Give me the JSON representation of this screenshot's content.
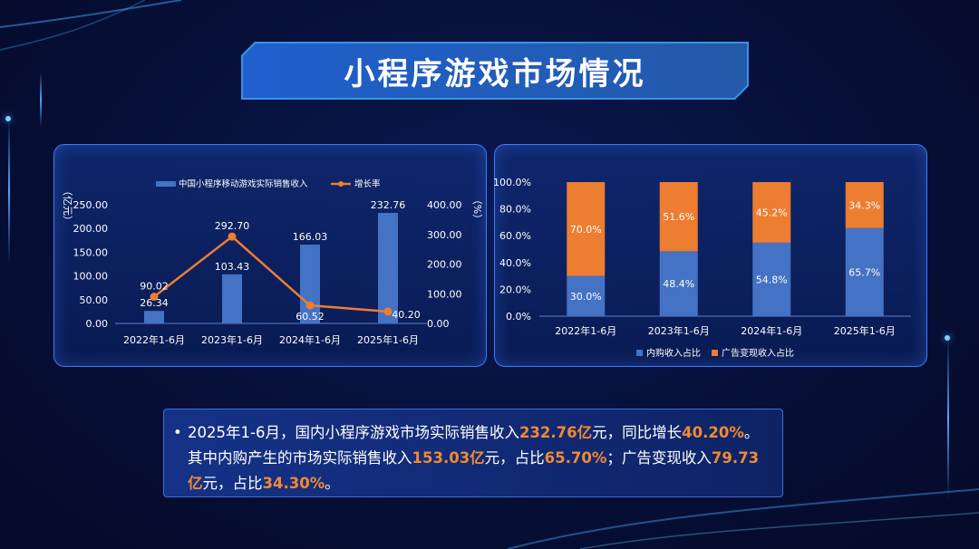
{
  "page": {
    "title": "小程序游戏市场情况"
  },
  "colors": {
    "blue": "#4472c4",
    "orange": "#ed7d31",
    "panel_border": "#3d7bff"
  },
  "chart_data": [
    {
      "type": "bar",
      "categories": [
        "2022年1-6月",
        "2023年1-6月",
        "2024年1-6月",
        "2025年1-6月"
      ],
      "series": [
        {
          "name": "中国小程序移动游戏实际销售收入",
          "type": "bar",
          "axis": "left",
          "values": [
            26.34,
            103.43,
            166.03,
            232.76
          ],
          "labels": [
            "26.34",
            "103.43",
            "166.03",
            "232.76"
          ]
        },
        {
          "name": "增长率",
          "type": "line",
          "axis": "right",
          "values": [
            90.02,
            292.7,
            60.52,
            40.2
          ],
          "labels": [
            "90.02",
            "292.70",
            "60.52",
            "40.20"
          ]
        }
      ],
      "left_axis": {
        "label": "（亿元）",
        "ylim": [
          0,
          250
        ],
        "ticks": [
          "0.00",
          "50.00",
          "100.00",
          "150.00",
          "200.00",
          "250.00"
        ]
      },
      "right_axis": {
        "label": "（%）",
        "ylim": [
          0,
          400
        ],
        "ticks": [
          "0.00",
          "100.00",
          "200.00",
          "300.00",
          "400.00"
        ]
      },
      "legend_position": "top"
    },
    {
      "type": "bar",
      "stacked": true,
      "categories": [
        "2022年1-6月",
        "2023年1-6月",
        "2024年1-6月",
        "2025年1-6月"
      ],
      "series": [
        {
          "name": "内购收入占比",
          "values": [
            30.0,
            48.4,
            54.8,
            65.7
          ],
          "labels": [
            "30.0%",
            "48.4%",
            "54.8%",
            "65.7%"
          ]
        },
        {
          "name": "广告变现收入占比",
          "values": [
            70.0,
            51.6,
            45.2,
            34.3
          ],
          "labels": [
            "70.0%",
            "51.6%",
            "45.2%",
            "34.3%"
          ]
        }
      ],
      "y_axis": {
        "ylim": [
          0,
          100
        ],
        "ticks": [
          "0.0%",
          "20.0%",
          "40.0%",
          "60.0%",
          "80.0%",
          "100.0%"
        ]
      },
      "legend_position": "bottom"
    }
  ],
  "summary": {
    "bullet": "•",
    "parts": [
      {
        "text": "2025年1-6月，国内小程序游戏市场实际销售收入",
        "hl": false
      },
      {
        "text": "232.76亿",
        "hl": true
      },
      {
        "text": "元，同比增长",
        "hl": false
      },
      {
        "text": "40.20%",
        "hl": true
      },
      {
        "text": "。其中内购产生的市场实际销售收入",
        "hl": false
      },
      {
        "text": "153.03亿",
        "hl": true
      },
      {
        "text": "元，占比",
        "hl": false
      },
      {
        "text": "65.70%",
        "hl": true
      },
      {
        "text": "；广告变现收入",
        "hl": false
      },
      {
        "text": "79.73亿",
        "hl": true
      },
      {
        "text": "元，占比",
        "hl": false
      },
      {
        "text": "34.30%",
        "hl": true
      },
      {
        "text": "。",
        "hl": false
      }
    ]
  }
}
